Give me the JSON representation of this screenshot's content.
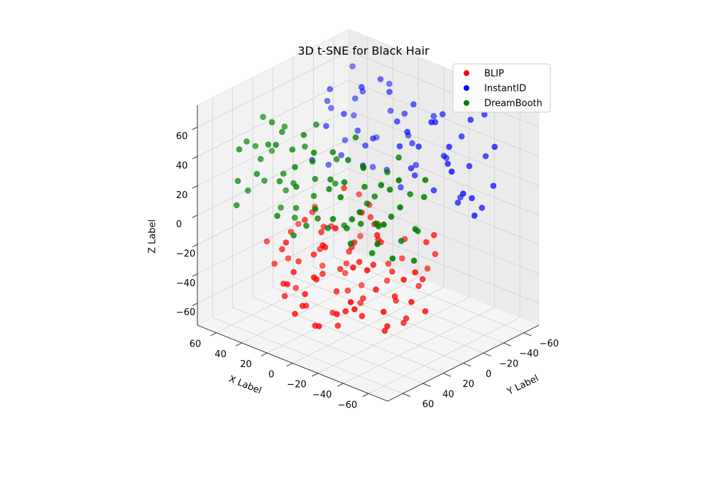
{
  "chart_data": {
    "type": "scatter",
    "projection": "3d",
    "title": "3D t-SNE for Black Hair",
    "xlabel": "X Label",
    "ylabel": "Y Label",
    "zlabel": "Z Label",
    "xlim": [
      -75,
      75
    ],
    "ylim": [
      -75,
      75
    ],
    "zlim": [
      -75,
      75
    ],
    "xticks": [
      60,
      40,
      20,
      0,
      -20,
      -40,
      -60
    ],
    "yticks": [
      -60,
      -40,
      -20,
      0,
      20,
      40,
      60
    ],
    "zticks": [
      60,
      40,
      20,
      0,
      -20,
      -40,
      -60
    ],
    "grid": true,
    "legend": "top-right",
    "series": [
      {
        "name": "BLIP",
        "color": "#ff0000",
        "points": [
          [
            5,
            10,
            -20
          ],
          [
            15,
            0,
            -30
          ],
          [
            -5,
            15,
            -25
          ],
          [
            20,
            20,
            -40
          ],
          [
            -15,
            -5,
            -35
          ],
          [
            10,
            30,
            -15
          ],
          [
            25,
            -10,
            -45
          ],
          [
            -20,
            20,
            -20
          ],
          [
            0,
            -20,
            -40
          ],
          [
            30,
            10,
            -30
          ],
          [
            -10,
            35,
            -50
          ],
          [
            15,
            -25,
            -20
          ],
          [
            35,
            25,
            -35
          ],
          [
            -25,
            5,
            -45
          ],
          [
            5,
            45,
            -30
          ],
          [
            -5,
            -30,
            -25
          ],
          [
            40,
            -5,
            -50
          ],
          [
            -30,
            30,
            -30
          ],
          [
            20,
            40,
            -55
          ],
          [
            10,
            -15,
            -10
          ],
          [
            -15,
            25,
            -55
          ],
          [
            25,
            15,
            -15
          ],
          [
            -35,
            -10,
            -35
          ],
          [
            0,
            5,
            -55
          ],
          [
            45,
            20,
            -20
          ],
          [
            -20,
            -25,
            -50
          ],
          [
            10,
            50,
            -40
          ],
          [
            30,
            -30,
            -35
          ],
          [
            -40,
            15,
            -25
          ],
          [
            15,
            35,
            -20
          ],
          [
            -10,
            0,
            -15
          ],
          [
            5,
            -40,
            -45
          ],
          [
            35,
            40,
            -45
          ],
          [
            -25,
            45,
            -40
          ],
          [
            20,
            -5,
            -60
          ],
          [
            -5,
            20,
            -10
          ],
          [
            0,
            30,
            -65
          ],
          [
            40,
            5,
            -10
          ],
          [
            -30,
            -20,
            -15
          ],
          [
            25,
            30,
            -60
          ],
          [
            -15,
            10,
            -5
          ],
          [
            10,
            -5,
            -65
          ],
          [
            50,
            30,
            -40
          ],
          [
            -45,
            0,
            -50
          ],
          [
            15,
            55,
            -25
          ],
          [
            -20,
            40,
            -15
          ],
          [
            30,
            -15,
            -55
          ],
          [
            5,
            25,
            -45
          ],
          [
            -35,
            25,
            -55
          ],
          [
            20,
            -35,
            -25
          ],
          [
            45,
            -20,
            -30
          ],
          [
            -10,
            -15,
            -60
          ],
          [
            0,
            45,
            -5
          ],
          [
            35,
            0,
            -20
          ],
          [
            -25,
            -35,
            -30
          ],
          [
            10,
            15,
            -35
          ],
          [
            -40,
            35,
            -40
          ],
          [
            25,
            50,
            -10
          ],
          [
            -5,
            55,
            -55
          ],
          [
            15,
            -20,
            -5
          ],
          [
            55,
            10,
            -45
          ],
          [
            -50,
            20,
            -35
          ],
          [
            5,
            0,
            0
          ],
          [
            -15,
            50,
            -45
          ],
          [
            30,
            25,
            -5
          ],
          [
            -30,
            0,
            -60
          ],
          [
            20,
            10,
            -70
          ],
          [
            40,
            35,
            -25
          ],
          [
            -20,
            -10,
            -70
          ],
          [
            10,
            40,
            -65
          ],
          [
            0,
            -10,
            -20
          ],
          [
            -5,
            60,
            -20
          ],
          [
            50,
            -10,
            -15
          ],
          [
            25,
            -25,
            -65
          ],
          [
            -35,
            45,
            -10
          ],
          [
            60,
            25,
            -30
          ],
          [
            -10,
            45,
            10
          ],
          [
            15,
            5,
            15
          ],
          [
            -45,
            10,
            -20
          ],
          [
            30,
            45,
            -50
          ],
          [
            5,
            -25,
            -55
          ],
          [
            -25,
            15,
            -65
          ],
          [
            45,
            15,
            -60
          ],
          [
            -15,
            -40,
            -45
          ],
          [
            35,
            -35,
            -10
          ],
          [
            -40,
            -15,
            -5
          ],
          [
            10,
            60,
            -50
          ],
          [
            20,
            55,
            -35
          ],
          [
            -30,
            55,
            -30
          ],
          [
            55,
            0,
            -25
          ]
        ]
      },
      {
        "name": "InstantID",
        "color": "#0000ff",
        "points": [
          [
            50,
            -40,
            20
          ],
          [
            -20,
            -50,
            30
          ],
          [
            30,
            -60,
            40
          ],
          [
            -40,
            -30,
            50
          ],
          [
            60,
            -20,
            10
          ],
          [
            -10,
            -65,
            20
          ],
          [
            40,
            -45,
            55
          ],
          [
            -50,
            -40,
            15
          ],
          [
            20,
            -30,
            35
          ],
          [
            -30,
            -55,
            45
          ],
          [
            55,
            -55,
            30
          ],
          [
            0,
            -45,
            60
          ],
          [
            -55,
            -25,
            25
          ],
          [
            35,
            -20,
            50
          ],
          [
            10,
            -60,
            10
          ],
          [
            -25,
            -35,
            60
          ],
          [
            60,
            -35,
            45
          ],
          [
            -45,
            -60,
            35
          ],
          [
            25,
            -50,
            5
          ],
          [
            -5,
            -25,
            40
          ],
          [
            45,
            -65,
            15
          ],
          [
            -35,
            -45,
            5
          ],
          [
            15,
            -40,
            65
          ],
          [
            -60,
            -50,
            50
          ],
          [
            50,
            -25,
            60
          ],
          [
            -15,
            -55,
            55
          ],
          [
            30,
            -35,
            25
          ],
          [
            -50,
            -20,
            40
          ],
          [
            5,
            -50,
            30
          ],
          [
            40,
            -55,
            0
          ],
          [
            -40,
            -65,
            60
          ],
          [
            20,
            -20,
            20
          ],
          [
            -20,
            -40,
            10
          ],
          [
            65,
            -45,
            35
          ],
          [
            -30,
            -25,
            65
          ],
          [
            0,
            -65,
            45
          ],
          [
            55,
            -30,
            5
          ],
          [
            -55,
            -55,
            20
          ],
          [
            35,
            -65,
            55
          ],
          [
            -10,
            -30,
            25
          ],
          [
            45,
            -15,
            40
          ],
          [
            -45,
            -45,
            65
          ],
          [
            15,
            -55,
            45
          ],
          [
            -25,
            -60,
            0
          ],
          [
            60,
            -60,
            60
          ],
          [
            -5,
            -40,
            15
          ],
          [
            25,
            -25,
            70
          ],
          [
            -60,
            -30,
            10
          ],
          [
            40,
            -40,
            30
          ],
          [
            -35,
            -35,
            35
          ],
          [
            10,
            -45,
            0
          ],
          [
            50,
            -50,
            45
          ],
          [
            -15,
            -20,
            55
          ],
          [
            30,
            -50,
            65
          ],
          [
            -50,
            -50,
            5
          ],
          [
            5,
            -35,
            50
          ],
          [
            -40,
            -50,
            30
          ],
          [
            20,
            -65,
            25
          ],
          [
            -20,
            -25,
            45
          ],
          [
            45,
            -30,
            15
          ]
        ]
      },
      {
        "name": "DreamBooth",
        "color": "#008000",
        "points": [
          [
            -40,
            40,
            20
          ],
          [
            30,
            50,
            30
          ],
          [
            -60,
            20,
            40
          ],
          [
            10,
            60,
            50
          ],
          [
            -30,
            55,
            10
          ],
          [
            50,
            40,
            20
          ],
          [
            -50,
            50,
            55
          ],
          [
            20,
            30,
            40
          ],
          [
            -20,
            45,
            60
          ],
          [
            40,
            60,
            35
          ],
          [
            -65,
            35,
            25
          ],
          [
            0,
            50,
            15
          ],
          [
            -35,
            25,
            50
          ],
          [
            60,
            45,
            45
          ],
          [
            -10,
            65,
            30
          ],
          [
            25,
            20,
            60
          ],
          [
            -55,
            60,
            20
          ],
          [
            45,
            25,
            10
          ],
          [
            -25,
            35,
            40
          ],
          [
            15,
            45,
            65
          ],
          [
            -45,
            15,
            35
          ],
          [
            35,
            55,
            55
          ],
          [
            -5,
            30,
            5
          ],
          [
            55,
            60,
            25
          ],
          [
            -60,
            45,
            60
          ],
          [
            5,
            25,
            45
          ],
          [
            -30,
            65,
            45
          ],
          [
            65,
            30,
            35
          ],
          [
            -15,
            20,
            20
          ],
          [
            30,
            35,
            0
          ],
          [
            -50,
            30,
            10
          ],
          [
            20,
            65,
            15
          ],
          [
            -40,
            55,
            65
          ],
          [
            50,
            20,
            50
          ],
          [
            -20,
            60,
            25
          ],
          [
            10,
            40,
            35
          ],
          [
            -60,
            60,
            35
          ],
          [
            40,
            45,
            65
          ],
          [
            -35,
            40,
            0
          ],
          [
            0,
            35,
            55
          ],
          [
            -55,
            20,
            15
          ],
          [
            35,
            30,
            20
          ],
          [
            -10,
            50,
            45
          ],
          [
            60,
            55,
            5
          ],
          [
            -45,
            35,
            45
          ],
          [
            15,
            55,
            0
          ],
          [
            -25,
            25,
            30
          ],
          [
            45,
            50,
            40
          ],
          [
            -65,
            50,
            45
          ],
          [
            25,
            40,
            10
          ],
          [
            -5,
            60,
            65
          ],
          [
            55,
            35,
            60
          ],
          [
            -30,
            45,
            20
          ],
          [
            5,
            65,
            40
          ],
          [
            -50,
            40,
            30
          ],
          [
            30,
            25,
            45
          ],
          [
            -15,
            40,
            10
          ],
          [
            40,
            35,
            55
          ],
          [
            -40,
            20,
            60
          ],
          [
            20,
            50,
            55
          ],
          [
            -60,
            30,
            0
          ],
          [
            10,
            20,
            25
          ],
          [
            -20,
            30,
            50
          ],
          [
            50,
            65,
            50
          ],
          [
            -35,
            60,
            30
          ],
          [
            0,
            40,
            5
          ],
          [
            -55,
            45,
            5
          ],
          [
            35,
            40,
            30
          ],
          [
            -10,
            25,
            65
          ],
          [
            60,
            20,
            30
          ],
          [
            -45,
            65,
            40
          ],
          [
            15,
            35,
            20
          ],
          [
            -25,
            55,
            50
          ],
          [
            45,
            30,
            0
          ],
          [
            -65,
            25,
            55
          ],
          [
            25,
            60,
            60
          ],
          [
            -5,
            45,
            35
          ],
          [
            55,
            50,
            15
          ],
          [
            -30,
            30,
            15
          ],
          [
            5,
            55,
            10
          ]
        ]
      }
    ]
  }
}
